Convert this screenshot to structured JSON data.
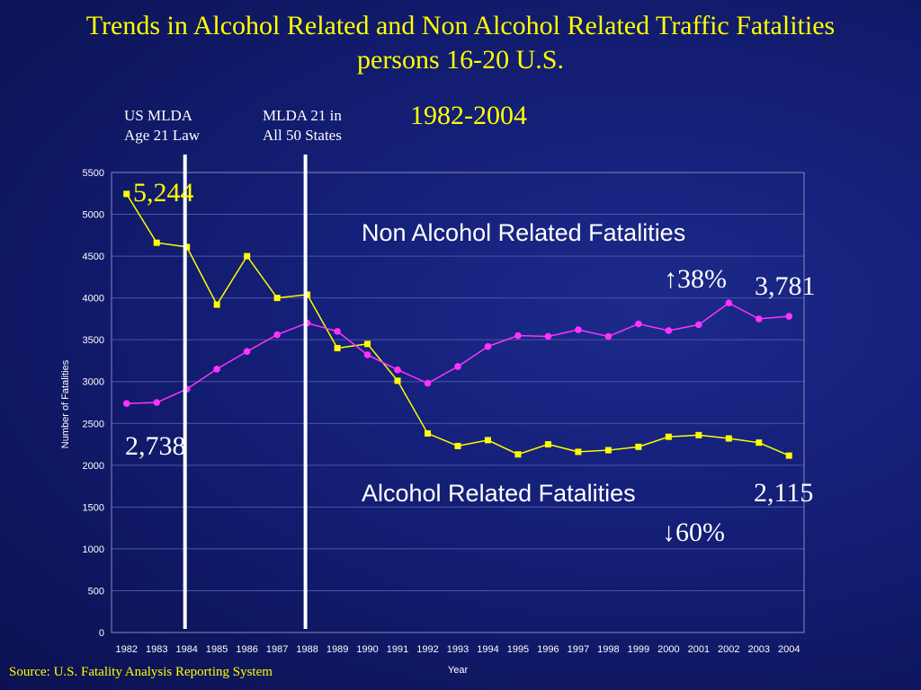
{
  "slide": {
    "title": "Trends in Alcohol Related and Non Alcohol Related Traffic Fatalities persons 16-20 U.S.",
    "subtitle": "1982-2004",
    "source": "Source: U.S. Fatality Analysis Reporting System",
    "law_lines": [
      {
        "label": "US MLDA\nAge 21 Law",
        "year": 1984
      },
      {
        "label": "MLDA 21 in\nAll 50 States",
        "year": 1988
      }
    ]
  },
  "chart_data": {
    "type": "line",
    "title": "",
    "xlabel": "Year",
    "ylabel": "Number of Fatalities",
    "ylim": [
      0,
      5500
    ],
    "yticks": [
      0,
      500,
      1000,
      1500,
      2000,
      2500,
      3000,
      3500,
      4000,
      4500,
      5000,
      5500
    ],
    "grid": true,
    "categories": [
      "1982",
      "1983",
      "1984",
      "1985",
      "1986",
      "1987",
      "1988",
      "1989",
      "1990",
      "1991",
      "1992",
      "1993",
      "1994",
      "1995",
      "1996",
      "1997",
      "1998",
      "1999",
      "2000",
      "2001",
      "2002",
      "2003",
      "2004"
    ],
    "series": [
      {
        "name": "Alcohol Related Fatalities",
        "color": "#ffff00",
        "marker": "square",
        "values": [
          5244,
          4660,
          4610,
          3920,
          4500,
          4000,
          4040,
          3400,
          3450,
          3010,
          2380,
          2230,
          2300,
          2130,
          2250,
          2160,
          2180,
          2220,
          2340,
          2360,
          2320,
          2270,
          2115
        ]
      },
      {
        "name": "Non Alcohol Related Fatalities",
        "color": "#ff33ff",
        "marker": "circle",
        "values": [
          2738,
          2750,
          2910,
          3150,
          3360,
          3560,
          3700,
          3600,
          3320,
          3140,
          2980,
          3180,
          3420,
          3550,
          3540,
          3620,
          3540,
          3690,
          3610,
          3680,
          3940,
          3750,
          3781
        ]
      }
    ],
    "annotations": [
      {
        "text": "5,244",
        "color": "#ffff00"
      },
      {
        "text": "2,738",
        "color": "#ffffff"
      },
      {
        "text": "Non Alcohol Related Fatalities",
        "color": "#ffffff"
      },
      {
        "text": "↑38%",
        "color": "#ffffff"
      },
      {
        "text": "3,781",
        "color": "#ffffff"
      },
      {
        "text": "Alcohol Related Fatalities",
        "color": "#ffffff"
      },
      {
        "text": "2,115",
        "color": "#ffffff"
      },
      {
        "text": "↓60%",
        "color": "#ffffff"
      }
    ]
  }
}
